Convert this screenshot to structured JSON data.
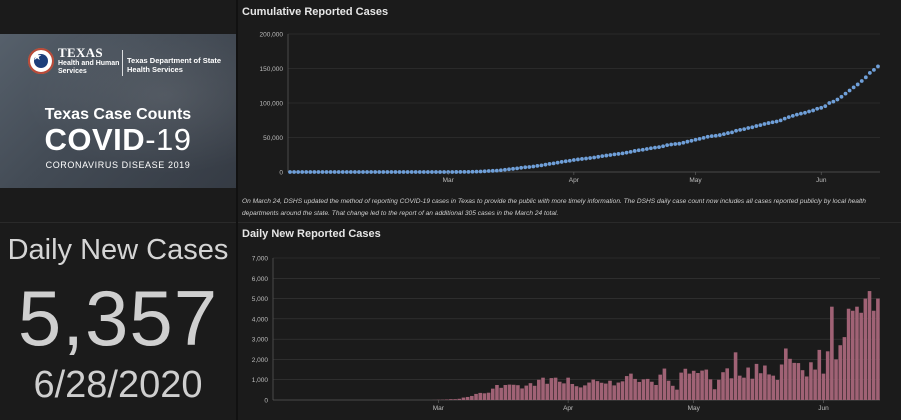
{
  "banner": {
    "hhs_line1": "TEXAS",
    "hhs_line2": "Health and Human",
    "hhs_line3": "Services",
    "dshs_line1": "Texas Department of State",
    "dshs_line2": "Health Services",
    "title": "Texas Case Counts",
    "covid_word": "COVID",
    "covid_number": "-19",
    "subtitle": "CORONAVIRUS DISEASE 2019"
  },
  "daily_panel": {
    "label": "Daily New Cases",
    "value": "5,357",
    "date": "6/28/2020"
  },
  "footnote": "On March 24, DSHS updated the method of reporting COVID-19 cases in Texas to provide the public with more timely information. The DSHS daily case count now includes all cases reported publicly by local health departments around the state. That change led to the report of an additional 305 cases in the March 24 total.",
  "colors": {
    "background": "#1b1b1b",
    "cumulative_series": "#6f9fd8",
    "daily_series": "#a06275",
    "grid": "#3a3a3a"
  },
  "chart_data": [
    {
      "type": "scatter",
      "title": "Cumulative Reported Cases",
      "x_tick_labels": [
        "Mar",
        "Apr",
        "May",
        "Jun"
      ],
      "y_tick_labels": [
        "0",
        "50,000",
        "100,000",
        "150,000",
        "200,000"
      ],
      "ylim": [
        0,
        200000
      ],
      "grid": "horizontal",
      "series": [
        {
          "values": [
            0,
            0,
            0,
            0,
            0,
            0,
            0,
            0,
            0,
            0,
            0,
            0,
            0,
            0,
            0,
            0,
            0,
            0,
            0,
            0,
            0,
            0,
            0,
            0,
            0,
            0,
            0,
            0,
            0,
            0,
            0,
            0,
            0,
            0,
            0,
            0,
            0,
            0,
            10,
            20,
            40,
            70,
            100,
            170,
            230,
            350,
            500,
            700,
            1000,
            1400,
            1700,
            2000,
            2550,
            3300,
            3900,
            4600,
            5300,
            6100,
            6800,
            7300,
            8000,
            8900,
            9600,
            10600,
            11700,
            12500,
            13500,
            14600,
            15500,
            16300,
            17400,
            18200,
            18900,
            19500,
            20200,
            21000,
            22000,
            23000,
            23800,
            24600,
            25500,
            26200,
            27000,
            28000,
            29200,
            30500,
            31500,
            32300,
            33300,
            34400,
            35300,
            36000,
            37300,
            38900,
            39900,
            40600,
            41000,
            42400,
            43900,
            45200,
            46700,
            48000,
            49500,
            51000,
            52000,
            52500,
            53500,
            54900,
            56400,
            57400,
            59800,
            61000,
            62100,
            63800,
            64800,
            66600,
            67900,
            69600,
            70900,
            72100,
            73100,
            74800,
            77400,
            79500,
            81300,
            83100,
            84600,
            85800,
            87700,
            89200,
            91700,
            93000,
            95400,
            100000,
            102000,
            105000,
            109000,
            113600,
            118100,
            122600,
            126900,
            131900,
            137200,
            143600,
            148000,
            153000
          ]
        }
      ]
    },
    {
      "type": "bar",
      "title": "Daily New Reported Cases",
      "x_tick_labels": [
        "Mar",
        "Apr",
        "May",
        "Jun"
      ],
      "y_tick_labels": [
        "0",
        "1,000",
        "2,000",
        "3,000",
        "4,000",
        "5,000",
        "6,000",
        "7,000"
      ],
      "ylim": [
        0,
        7000
      ],
      "grid": "horizontal",
      "series": [
        {
          "values": [
            0,
            0,
            0,
            0,
            0,
            0,
            0,
            0,
            0,
            0,
            0,
            0,
            0,
            0,
            0,
            0,
            0,
            0,
            0,
            0,
            0,
            0,
            0,
            0,
            0,
            0,
            0,
            0,
            0,
            0,
            0,
            0,
            0,
            0,
            0,
            0,
            0,
            0,
            4,
            10,
            15,
            25,
            40,
            40,
            60,
            120,
            150,
            200,
            300,
            350,
            330,
            360,
            560,
            740,
            600,
            740,
            760,
            750,
            730,
            570,
            710,
            830,
            700,
            1000,
            1100,
            800,
            1080,
            1100,
            900,
            820,
            1100,
            790,
            680,
            620,
            720,
            860,
            1010,
            930,
            850,
            810,
            950,
            720,
            860,
            920,
            1180,
            1300,
            1040,
            890,
            1020,
            1040,
            900,
            740,
            1250,
            1550,
            950,
            700,
            510,
            1350,
            1540,
            1300,
            1440,
            1330,
            1450,
            1500,
            1020,
            530,
            1000,
            1370,
            1560,
            1070,
            2350,
            1200,
            1100,
            1600,
            1050,
            1780,
            1320,
            1700,
            1260,
            1200,
            990,
            1750,
            2540,
            2030,
            1830,
            1820,
            1470,
            1160,
            1860,
            1500,
            2470,
            1300,
            2400,
            4600,
            2000,
            2700,
            3100,
            4500,
            4400,
            4600,
            4300,
            5000,
            5370,
            4400,
            5000
          ]
        }
      ]
    }
  ]
}
